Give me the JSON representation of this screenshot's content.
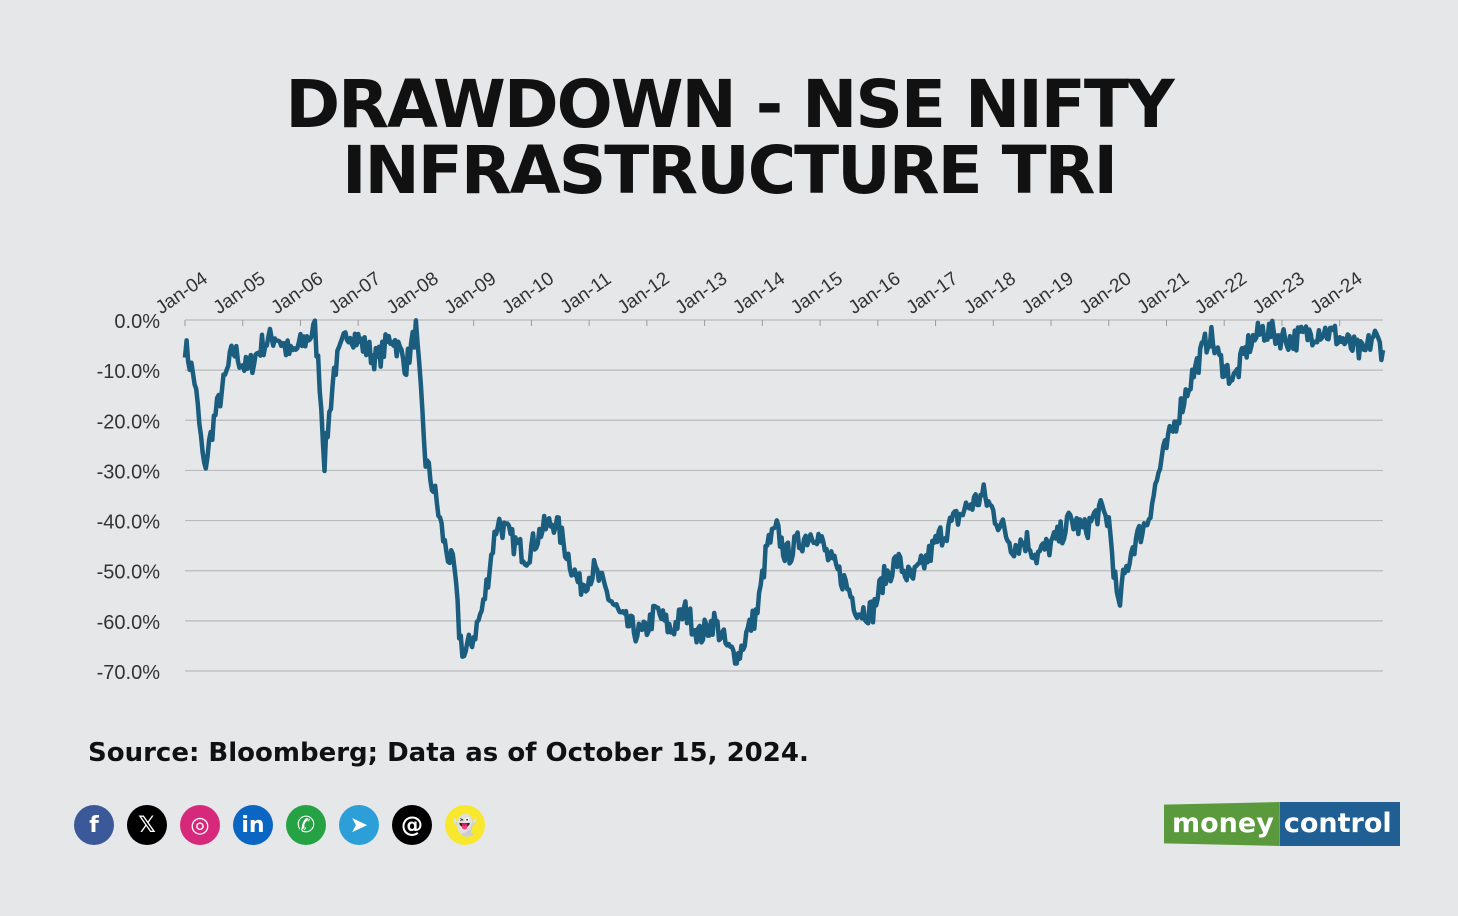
{
  "title_lines": [
    "DRAWDOWN - NSE NIFTY",
    "INFRASTRUCTURE TRI"
  ],
  "source": "Source: Bloomberg; Data as of October 15, 2024.",
  "logo": {
    "part1": "money",
    "part2": "control"
  },
  "social_icons": [
    {
      "name": "facebook-icon",
      "glyph": "f",
      "color": "#3b5998"
    },
    {
      "name": "x-icon",
      "glyph": "𝕏",
      "color": "#000000"
    },
    {
      "name": "instagram-icon",
      "glyph": "◎",
      "color": "#d6297c"
    },
    {
      "name": "linkedin-icon",
      "glyph": "in",
      "color": "#0a66c2"
    },
    {
      "name": "whatsapp-icon",
      "glyph": "✆",
      "color": "#25a244"
    },
    {
      "name": "telegram-icon",
      "glyph": "➤",
      "color": "#2c9fd9"
    },
    {
      "name": "threads-icon",
      "glyph": "@",
      "color": "#000000"
    },
    {
      "name": "snapchat-icon",
      "glyph": "👻",
      "color": "#f7e82e"
    }
  ],
  "chart_data": {
    "type": "area",
    "title": "DRAWDOWN - NSE NIFTY INFRASTRUCTURE TRI",
    "xlabel": "",
    "ylabel": "",
    "series_color": "#1b5d7e",
    "x_tick_labels": [
      "Jan-04",
      "Jan-05",
      "Jan-06",
      "Jan-07",
      "Jan-08",
      "Jan-09",
      "Jan-10",
      "Jan-11",
      "Jan-12",
      "Jan-13",
      "Jan-14",
      "Jan-15",
      "Jan-16",
      "Jan-17",
      "Jan-18",
      "Jan-19",
      "Jan-20",
      "Jan-21",
      "Jan-22",
      "Jan-23",
      "Jan-24"
    ],
    "y_tick_labels": [
      "0.0%",
      "-10.0%",
      "-20.0%",
      "-30.0%",
      "-40.0%",
      "-50.0%",
      "-60.0%",
      "-70.0%"
    ],
    "ylim": [
      -70,
      0
    ],
    "xlim": [
      "2004-01",
      "2024-10"
    ],
    "grid": true,
    "x": [
      "2004-01",
      "2004-03",
      "2004-05",
      "2004-07",
      "2004-09",
      "2004-11",
      "2005-02",
      "2005-05",
      "2005-08",
      "2005-11",
      "2006-02",
      "2006-04",
      "2006-05",
      "2006-06",
      "2006-08",
      "2006-11",
      "2007-02",
      "2007-05",
      "2007-08",
      "2007-11",
      "2008-01",
      "2008-02",
      "2008-03",
      "2008-05",
      "2008-07",
      "2008-09",
      "2008-10",
      "2008-11",
      "2009-01",
      "2009-03",
      "2009-05",
      "2009-06",
      "2009-09",
      "2009-12",
      "2010-03",
      "2010-06",
      "2010-09",
      "2010-11",
      "2011-02",
      "2011-05",
      "2011-08",
      "2011-12",
      "2012-03",
      "2012-06",
      "2012-09",
      "2012-12",
      "2013-03",
      "2013-06",
      "2013-08",
      "2013-10",
      "2013-12",
      "2014-02",
      "2014-04",
      "2014-06",
      "2014-09",
      "2014-12",
      "2015-03",
      "2015-06",
      "2015-09",
      "2015-12",
      "2016-02",
      "2016-05",
      "2016-08",
      "2016-11",
      "2017-02",
      "2017-05",
      "2017-08",
      "2017-11",
      "2018-02",
      "2018-05",
      "2018-08",
      "2018-10",
      "2019-02",
      "2019-05",
      "2019-08",
      "2019-11",
      "2020-01",
      "2020-03",
      "2020-04",
      "2020-06",
      "2020-09",
      "2020-12",
      "2021-03",
      "2021-06",
      "2021-09",
      "2021-10",
      "2021-12",
      "2022-03",
      "2022-06",
      "2022-09",
      "2022-12",
      "2023-03",
      "2023-06",
      "2023-09",
      "2023-12",
      "2024-03",
      "2024-06",
      "2024-08",
      "2024-10"
    ],
    "y": [
      -5,
      -12,
      -30,
      -20,
      -13,
      -6,
      -10,
      -5,
      -3,
      -7,
      -4,
      -2,
      -12,
      -28,
      -10,
      -2,
      -5,
      -8,
      -3,
      -9,
      -2,
      -15,
      -28,
      -35,
      -45,
      -50,
      -62,
      -67,
      -63,
      -57,
      -45,
      -40,
      -44,
      -47,
      -42,
      -40,
      -48,
      -53,
      -50,
      -55,
      -60,
      -63,
      -58,
      -62,
      -58,
      -63,
      -60,
      -66,
      -67,
      -62,
      -58,
      -45,
      -42,
      -47,
      -44,
      -42,
      -48,
      -52,
      -58,
      -58,
      -52,
      -48,
      -52,
      -48,
      -43,
      -40,
      -37,
      -35,
      -40,
      -45,
      -44,
      -47,
      -44,
      -40,
      -42,
      -38,
      -40,
      -58,
      -52,
      -45,
      -40,
      -28,
      -20,
      -12,
      -5,
      -3,
      -8,
      -12,
      -5,
      -2,
      -3,
      -4,
      -3,
      -2,
      -3,
      -5,
      -7,
      -3,
      -6
    ]
  }
}
